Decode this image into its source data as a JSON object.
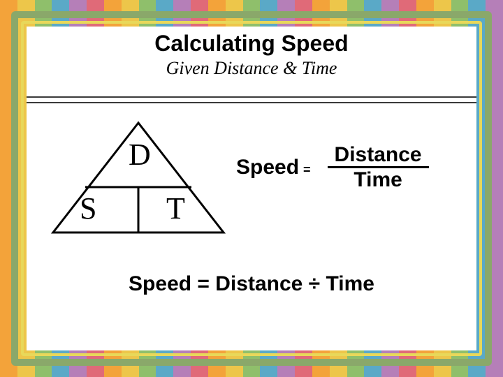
{
  "stripes": {
    "colors": [
      "#f3a33a",
      "#edc64a",
      "#8fbf6b",
      "#5aa9c7",
      "#b57fb8",
      "#e06a78",
      "#f3a33a",
      "#edc64a",
      "#8fbf6b",
      "#5aa9c7",
      "#b57fb8",
      "#e06a78",
      "#f3a33a",
      "#edc64a",
      "#8fbf6b",
      "#5aa9c7",
      "#b57fb8",
      "#e06a78",
      "#f3a33a",
      "#edc64a",
      "#8fbf6b",
      "#5aa9c7",
      "#b57fb8",
      "#e06a78",
      "#f3a33a",
      "#edc64a",
      "#8fbf6b",
      "#5aa9c7",
      "#b57fb8"
    ]
  },
  "frame": {
    "green": "#8aa86a",
    "yellow": "#e8d85a",
    "panel_bg": "#ffffff"
  },
  "title": "Calculating Speed",
  "subtitle": "Given Distance & Time",
  "triangle": {
    "stroke": "#000000",
    "stroke_width": 3,
    "labels": {
      "top": "D",
      "left": "S",
      "right": "T"
    }
  },
  "formula_fraction": {
    "lhs": "Speed",
    "eq": "=",
    "numerator": "Distance",
    "denominator": "Time"
  },
  "equation_line": "Speed = Distance ÷ Time"
}
